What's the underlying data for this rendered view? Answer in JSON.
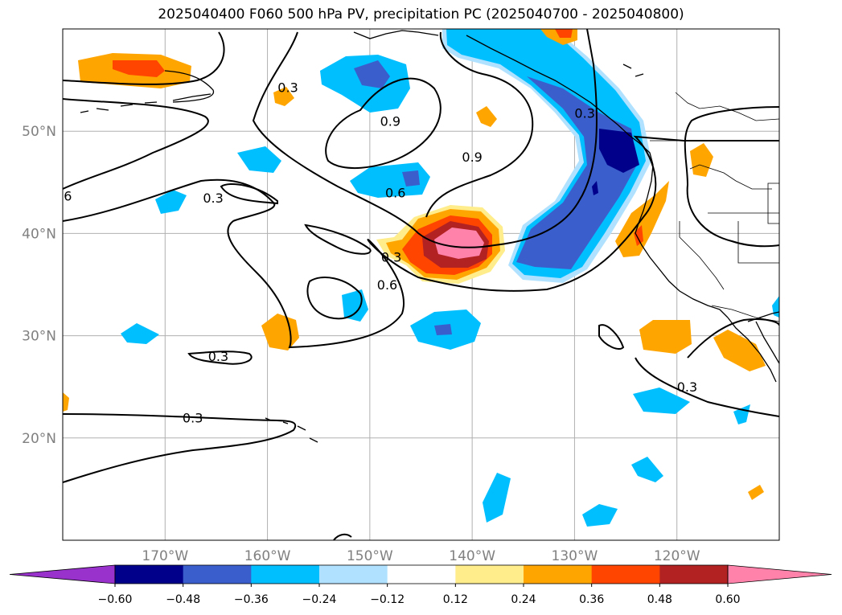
{
  "title": "2025040400 F060 500 hPa PV, precipitation PC (2025040700 - 2025040800)",
  "map": {
    "lon_range": [
      180,
      110
    ],
    "lat_range": [
      10,
      60
    ],
    "lat_ticks": [
      {
        "value": 50,
        "label": "50°N"
      },
      {
        "value": 40,
        "label": "40°N"
      },
      {
        "value": 30,
        "label": "30°N"
      },
      {
        "value": 20,
        "label": "20°N"
      }
    ],
    "lon_ticks": [
      {
        "value": 170,
        "label": "170°W"
      },
      {
        "value": 160,
        "label": "160°W"
      },
      {
        "value": 150,
        "label": "150°W"
      },
      {
        "value": 140,
        "label": "140°W"
      },
      {
        "value": 130,
        "label": "130°W"
      },
      {
        "value": 120,
        "label": "120°W"
      }
    ],
    "grid": true,
    "contour_labels": [
      {
        "text": "0.3",
        "lon": 158.0,
        "lat": 54.3
      },
      {
        "text": "0.9",
        "lon": 148.0,
        "lat": 51.0
      },
      {
        "text": "0.9",
        "lon": 140.0,
        "lat": 47.5
      },
      {
        "text": "0.6",
        "lon": 147.5,
        "lat": 44.0
      },
      {
        "text": "0.3",
        "lon": 165.3,
        "lat": 43.5
      },
      {
        "text": "0.3",
        "lon": 147.9,
        "lat": 37.7
      },
      {
        "text": "0.6",
        "lon": 148.3,
        "lat": 35.0
      },
      {
        "text": "0.3",
        "lon": 164.8,
        "lat": 28.0
      },
      {
        "text": "0.3",
        "lon": 167.3,
        "lat": 22.0
      },
      {
        "text": "0.3",
        "lon": 119.0,
        "lat": 25.0
      },
      {
        "text": "0.3",
        "lon": 129.0,
        "lat": 51.8
      },
      {
        "text": "6",
        "lon": 179.5,
        "lat": 43.7
      }
    ]
  },
  "colorbar": {
    "ticks": [
      "−0.60",
      "−0.48",
      "−0.36",
      "−0.24",
      "−0.12",
      "0.12",
      "0.24",
      "0.36",
      "0.48",
      "0.60"
    ],
    "colors": [
      "#9932cc",
      "#00008b",
      "#3a5fcd",
      "#00bfff",
      "#b0e2ff",
      "#ffffff",
      "#ffec8b",
      "#ffa500",
      "#ff4500",
      "#b22222",
      "#ff82ab"
    ]
  }
}
